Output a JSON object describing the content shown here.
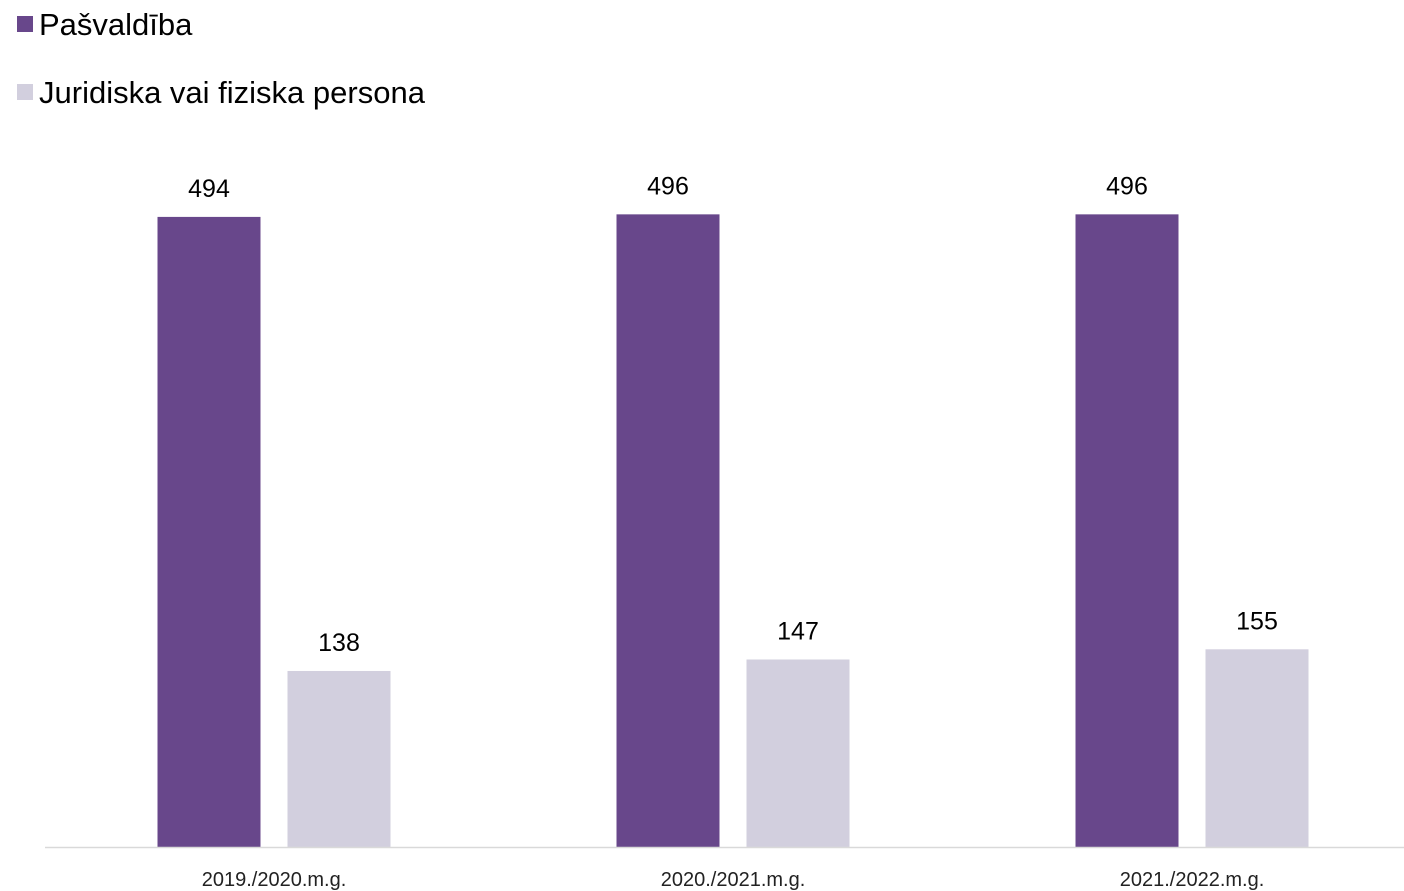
{
  "chart_data": {
    "type": "bar",
    "title": "",
    "xlabel": "",
    "ylabel": "",
    "categories": [
      "2019./2020.m.g.",
      "2020./2021.m.g.",
      "2021./2022.m.g."
    ],
    "series": [
      {
        "name": "Pašvaldība",
        "values": [
          494,
          496,
          496
        ],
        "color": "#68478b"
      },
      {
        "name": "Juridiska vai fiziska persona",
        "values": [
          138,
          147,
          155
        ],
        "color": "#d2cfde"
      }
    ],
    "ylim": [
      0,
      500
    ],
    "grid": false,
    "legend": "top-left",
    "data_labels": true,
    "axis_color": "#d9d9d9"
  }
}
